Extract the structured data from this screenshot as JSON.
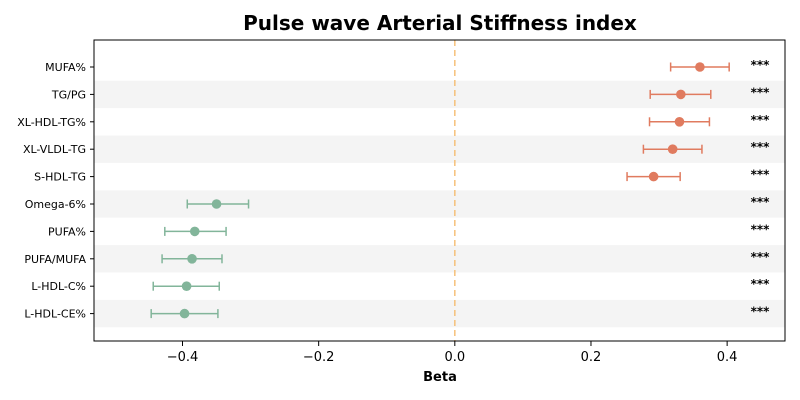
{
  "chart_data": {
    "type": "forest",
    "title": "Pulse wave Arterial Stiffness index",
    "xlabel": "Beta",
    "ylabel": "",
    "xlim": [
      -0.53,
      0.485
    ],
    "xticks": [
      -0.4,
      -0.2,
      0.0,
      0.2,
      0.4
    ],
    "xtick_labels": [
      "−0.4",
      "−0.2",
      "0.0",
      "0.2",
      "0.4"
    ],
    "reference_line": 0.0,
    "reference_line_style": "dashed",
    "row_banding": true,
    "grid": false,
    "categories": [
      "MUFA%",
      "TG/PG",
      "XL-HDL-TG%",
      "XL-VLDL-TG",
      "S-HDL-TG",
      "Omega-6%",
      "PUFA%",
      "PUFA/MUFA",
      "L-HDL-C%",
      "L-HDL-CE%"
    ],
    "beta": [
      0.36,
      0.332,
      0.33,
      0.32,
      0.292,
      -0.35,
      -0.382,
      -0.386,
      -0.394,
      -0.397
    ],
    "ci_lower": [
      0.317,
      0.287,
      0.286,
      0.277,
      0.253,
      -0.393,
      -0.426,
      -0.43,
      -0.443,
      -0.446
    ],
    "ci_upper": [
      0.403,
      0.376,
      0.374,
      0.363,
      0.331,
      -0.303,
      -0.336,
      -0.342,
      -0.346,
      -0.348
    ],
    "significance": [
      "***",
      "***",
      "***",
      "***",
      "***",
      "***",
      "***",
      "***",
      "***",
      "***"
    ],
    "colors": {
      "positive": "#e07b5f",
      "negative": "#82b59a",
      "reference_line": "#f5c07a",
      "band": "#f4f4f4"
    }
  }
}
